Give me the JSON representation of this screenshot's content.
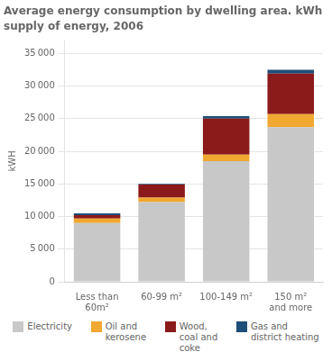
{
  "chart_data": {
    "type": "bar",
    "title": "Average energy consumption by dwelling area. kWh",
    "subtitle": "supply of energy, 2006",
    "ylabel": "kWH",
    "categories": [
      "Less than\n60m²",
      "60-99 m²",
      "100-149 m²",
      "150 m²\nand more"
    ],
    "series": [
      {
        "name": "Electricity",
        "color": "#c8c8c8",
        "values": [
          9000,
          12200,
          18500,
          23700
        ]
      },
      {
        "name": "Oil and\nkerosene",
        "color": "#f0a830",
        "values": [
          700,
          700,
          1000,
          2000
        ]
      },
      {
        "name": "Wood,\ncoal and\ncoke",
        "color": "#8b1a1a",
        "values": [
          500,
          2000,
          5500,
          6200
        ]
      },
      {
        "name": "Gas and\ndistrict heating",
        "color": "#1f4e79",
        "values": [
          300,
          100,
          400,
          600
        ]
      }
    ],
    "ylim": [
      0,
      37000
    ],
    "yticks": [
      0,
      {
        "value": 5000,
        "label": "5 000"
      },
      {
        "value": 10000,
        "label": "10 000"
      },
      {
        "value": 15000,
        "label": "15 000"
      },
      {
        "value": 20000,
        "label": "20 000"
      },
      {
        "value": 25000,
        "label": "25 000"
      },
      {
        "value": 30000,
        "label": "30 000"
      },
      {
        "value": 35000,
        "label": "35 000"
      }
    ],
    "stacked": true,
    "grid": true,
    "legend": "bottom"
  }
}
